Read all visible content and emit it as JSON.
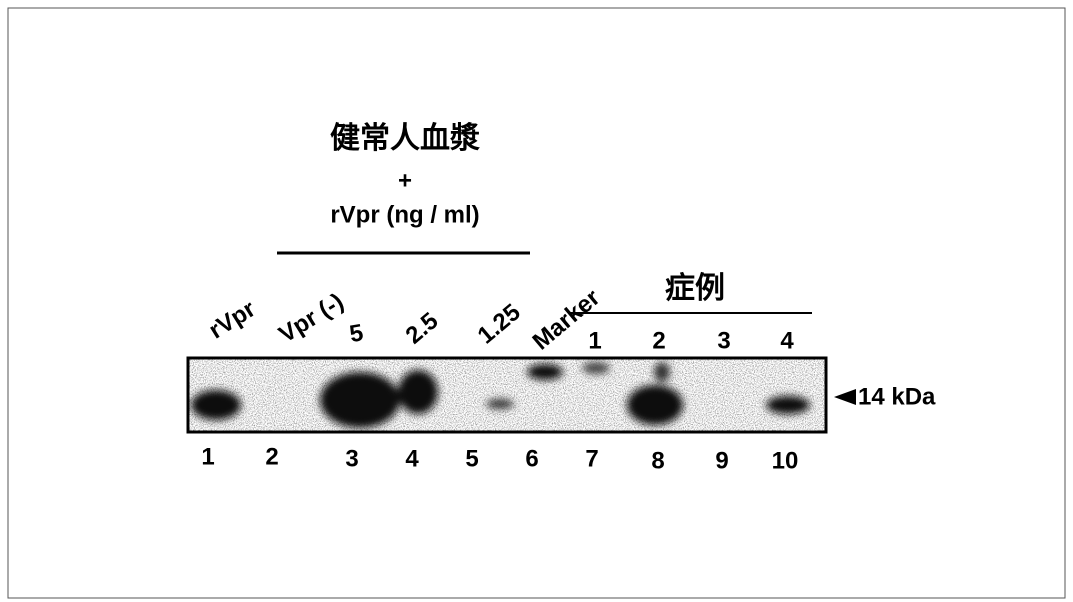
{
  "header": {
    "title": "健常人血漿",
    "plus": "+",
    "subtitle": "rVpr (ng / ml)"
  },
  "lanes": {
    "top_labels": [
      "rVpr",
      "Vpr (-)",
      "5",
      "2.5",
      "1.25",
      "Marker"
    ],
    "case_group": "症例",
    "case_numbers": [
      "1",
      "2",
      "3",
      "4"
    ],
    "lane_numbers": [
      "1",
      "2",
      "3",
      "4",
      "5",
      "6",
      "7",
      "8",
      "9",
      "10"
    ]
  },
  "marker_label": "14 kDa"
}
